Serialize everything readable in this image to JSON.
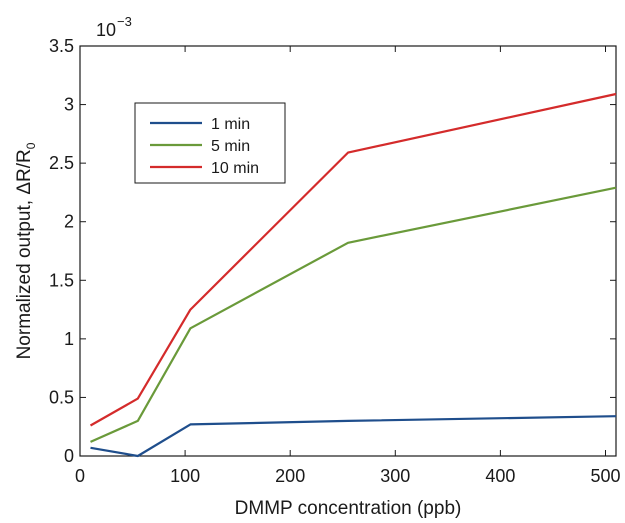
{
  "chart_data": {
    "type": "line",
    "xlabel": "DMMP concentration (ppb)",
    "ylabel_main": "Normalized output, ΔR/R",
    "ylabel_sub": "0",
    "scale_base": "10",
    "scale_exp": "−3",
    "xlim": [
      0,
      510
    ],
    "ylim": [
      0,
      3.5
    ],
    "x_ticks": [
      0,
      100,
      200,
      300,
      400,
      500
    ],
    "y_ticks": [
      0,
      0.5,
      1,
      1.5,
      2,
      2.5,
      3,
      3.5
    ],
    "x_tick_labels": [
      "0",
      "100",
      "200",
      "300",
      "400",
      "500"
    ],
    "y_tick_labels": [
      "0",
      "0.5",
      "1",
      "1.5",
      "2",
      "2.5",
      "3",
      "3.5"
    ],
    "legend_position": "upper-left",
    "series": [
      {
        "name": "1 min",
        "color": "#1f4e8c",
        "x": [
          10,
          55,
          105,
          255,
          510
        ],
        "y": [
          0.07,
          0.0,
          0.27,
          0.3,
          0.34
        ]
      },
      {
        "name": "5 min",
        "color": "#6a9a3a",
        "x": [
          10,
          55,
          105,
          255,
          510
        ],
        "y": [
          0.12,
          0.3,
          1.09,
          1.82,
          2.29
        ]
      },
      {
        "name": "10 min",
        "color": "#d42b2b",
        "x": [
          10,
          55,
          105,
          255,
          510
        ],
        "y": [
          0.26,
          0.49,
          1.25,
          2.59,
          3.09
        ]
      }
    ]
  }
}
